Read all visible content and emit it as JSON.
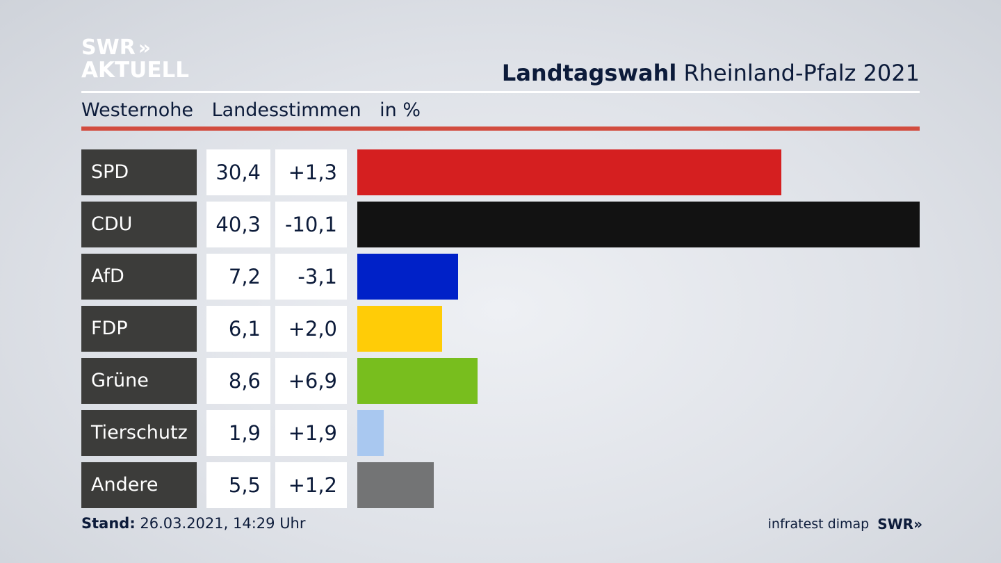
{
  "brand": {
    "logo_line1": "SWR",
    "logo_chevrons": "»",
    "logo_line2": "AKTUELL"
  },
  "header": {
    "title_bold": "Landtagswahl",
    "title_rest": "Rheinland-Pfalz 2021"
  },
  "subheader": {
    "location": "Westernohe",
    "metric": "Landesstimmen",
    "unit": "in %"
  },
  "colors": {
    "accent_rule": "#d24c3f",
    "label_bg": "#3c3c3a",
    "text": "#0c1b3a"
  },
  "chart_data": {
    "type": "bar",
    "orientation": "horizontal",
    "categories": [
      "SPD",
      "CDU",
      "AfD",
      "FDP",
      "Grüne",
      "Tierschutz",
      "Andere"
    ],
    "values": [
      30.4,
      40.3,
      7.2,
      6.1,
      8.6,
      1.9,
      5.5
    ],
    "value_labels": [
      "30,4",
      "40,3",
      "7,2",
      "6,1",
      "8,6",
      "1,9",
      "5,5"
    ],
    "changes": [
      1.3,
      -10.1,
      -3.1,
      2.0,
      6.9,
      1.9,
      1.2
    ],
    "change_labels": [
      "+1,3",
      "-10,1",
      "-3,1",
      "+2,0",
      "+6,9",
      "+1,9",
      "+1,2"
    ],
    "bar_colors": [
      "#d51f20",
      "#121212",
      "#0021c8",
      "#ffcc07",
      "#78be1e",
      "#a9c8f0",
      "#737475"
    ],
    "xlim": [
      0,
      40.3
    ]
  },
  "footer": {
    "stand_label": "Stand:",
    "stand_value": "26.03.2021, 14:29 Uhr",
    "source": "infratest dimap",
    "source_brand": "SWR",
    "source_chevrons": "»"
  }
}
